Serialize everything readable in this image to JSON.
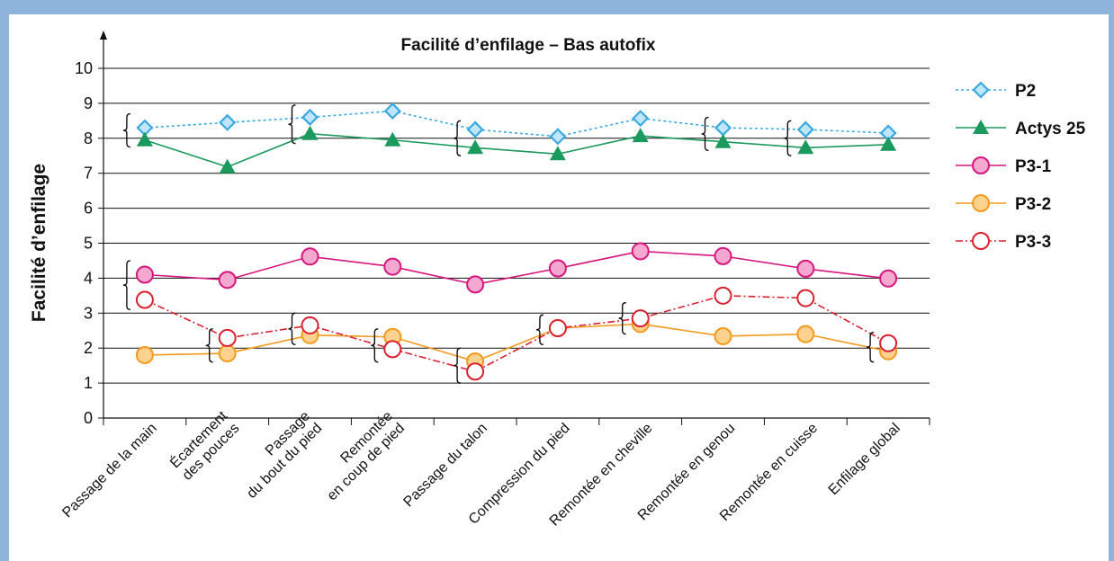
{
  "chart_data": {
    "type": "line",
    "title": "Facilité d’enfilage – Bas autofix",
    "ylabel": "Facilité d’enfilage",
    "xlabel": "",
    "ylim": [
      0,
      10
    ],
    "yticks": [
      "0",
      "1",
      "2",
      "3",
      "4",
      "5",
      "6",
      "7",
      "8",
      "9",
      "10"
    ],
    "grid": true,
    "legend_position": "right",
    "categories": [
      "Passage de la main",
      "Écartement\ndes pouces",
      "Passage\ndu bout du pied",
      "Remontée\nen coup de pied",
      "Passage du talon",
      "Compression du pied",
      "Remontée en cheville",
      "Remontée en genou",
      "Remontée en cuisse",
      "Enfilage global"
    ],
    "series": [
      {
        "name": "P2",
        "color": "#3aa9e0",
        "marker": "diamond",
        "line": "dashed",
        "values": [
          8.3,
          8.45,
          8.6,
          8.78,
          8.25,
          8.05,
          8.57,
          8.3,
          8.25,
          8.15
        ]
      },
      {
        "name": "Actys 25",
        "color": "#1a9a5c",
        "marker": "triangle",
        "line": "solid",
        "values": [
          7.95,
          7.18,
          8.13,
          7.95,
          7.73,
          7.55,
          8.07,
          7.9,
          7.73,
          7.82
        ]
      },
      {
        "name": "P3-1",
        "color": "#d6157e",
        "marker": "circle-filled",
        "line": "solid",
        "values": [
          4.1,
          3.95,
          4.62,
          4.33,
          3.82,
          4.28,
          4.77,
          4.63,
          4.27,
          3.99
        ]
      },
      {
        "name": "P3-2",
        "color": "#f39a1e",
        "marker": "circle-filled",
        "line": "solid",
        "values": [
          1.8,
          1.85,
          2.37,
          2.32,
          1.62,
          2.57,
          2.69,
          2.34,
          2.4,
          1.91
        ]
      },
      {
        "name": "P3-3",
        "color": "#d92130",
        "marker": "circle-open",
        "line": "dashdot",
        "values": [
          3.38,
          2.29,
          2.65,
          1.97,
          1.33,
          2.57,
          2.85,
          3.5,
          3.43,
          2.14
        ]
      }
    ]
  }
}
